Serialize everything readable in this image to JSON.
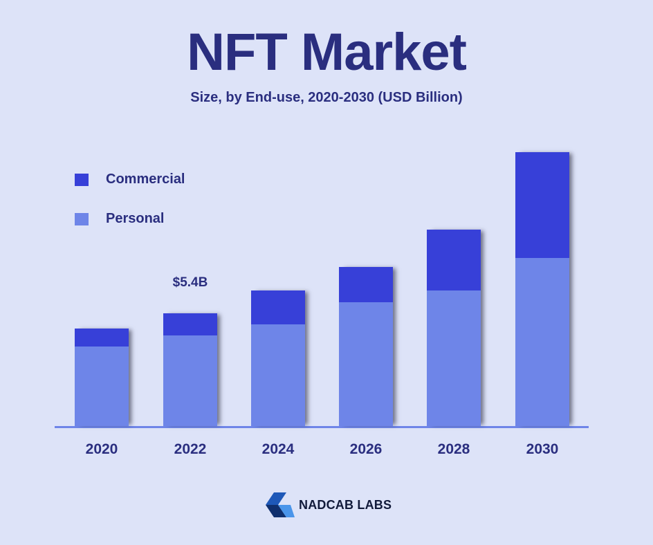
{
  "header": {
    "title": "NFT Market",
    "subtitle": "Size, by End-use, 2020-2030 (USD Billion)"
  },
  "legend": [
    {
      "label": "Commercial",
      "color": "#3740d8"
    },
    {
      "label": "Personal",
      "color": "#6e85e8"
    }
  ],
  "annotation": "$5.4B",
  "brand": {
    "name": "NADCAB LABS",
    "icon": "nadcab-logo-icon"
  },
  "colors": {
    "background": "#dde3f8",
    "text": "#2a2e7f",
    "commercial": "#3740d8",
    "personal": "#6e85e8"
  },
  "chart_data": {
    "type": "bar",
    "stacked": true,
    "title": "NFT Market",
    "subtitle": "Size, by End-use, 2020-2030 (USD Billion)",
    "xlabel": "",
    "ylabel": "USD Billion",
    "categories": [
      "2020",
      "2022",
      "2024",
      "2026",
      "2028",
      "2030"
    ],
    "series": [
      {
        "name": "Personal",
        "color": "#6e85e8",
        "values": [
          3.81,
          4.34,
          4.87,
          5.93,
          6.49,
          8.05
        ]
      },
      {
        "name": "Commercial",
        "color": "#3740d8",
        "values": [
          0.86,
          1.06,
          1.62,
          1.69,
          2.92,
          5.07
        ]
      }
    ],
    "totals": [
      4.67,
      5.4,
      6.49,
      7.62,
      9.41,
      13.12
    ],
    "annotations": [
      {
        "category": "2022",
        "text": "$5.4B"
      }
    ],
    "ylim": [
      0,
      14
    ],
    "grid": false,
    "legend_position": "top-left",
    "y_axis_visible": false
  }
}
